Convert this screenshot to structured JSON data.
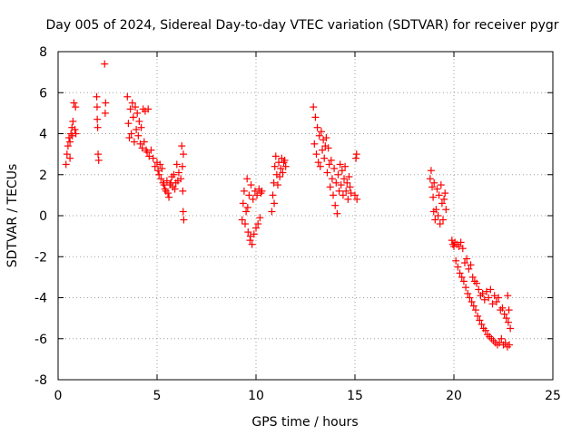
{
  "chart_data": {
    "type": "scatter",
    "title": "Day 005 of 2024, Sidereal Day-to-day VTEC variation (SDTVAR) for receiver pygr",
    "xlabel": "GPS time / hours",
    "ylabel": "SDTVAR / TECUs",
    "xlim": [
      0,
      25
    ],
    "ylim": [
      -8,
      8
    ],
    "xticks": [
      0,
      5,
      10,
      15,
      20,
      25
    ],
    "yticks": [
      -8,
      -6,
      -4,
      -2,
      0,
      2,
      4,
      6,
      8
    ],
    "grid": true,
    "marker": "+",
    "color": "#ff0000",
    "series": [
      {
        "name": "SDTVAR",
        "points": [
          [
            0.4,
            2.5
          ],
          [
            0.45,
            3.0
          ],
          [
            0.5,
            3.4
          ],
          [
            0.55,
            3.8
          ],
          [
            0.6,
            3.6
          ],
          [
            0.65,
            4.0
          ],
          [
            0.7,
            4.3
          ],
          [
            0.75,
            4.6
          ],
          [
            0.8,
            5.5
          ],
          [
            0.85,
            4.2
          ],
          [
            0.9,
            4.0
          ],
          [
            0.88,
            5.3
          ],
          [
            0.6,
            2.8
          ],
          [
            0.72,
            3.9
          ],
          [
            1.95,
            5.8
          ],
          [
            1.98,
            4.7
          ],
          [
            2.0,
            4.3
          ],
          [
            2.02,
            3.0
          ],
          [
            2.05,
            2.7
          ],
          [
            1.97,
            5.3
          ],
          [
            2.35,
            7.4
          ],
          [
            2.4,
            5.5
          ],
          [
            2.38,
            5.0
          ],
          [
            3.5,
            5.8
          ],
          [
            3.55,
            4.5
          ],
          [
            3.6,
            3.8
          ],
          [
            3.65,
            5.2
          ],
          [
            3.7,
            4.0
          ],
          [
            3.75,
            5.5
          ],
          [
            3.8,
            4.8
          ],
          [
            3.85,
            3.6
          ],
          [
            3.9,
            5.3
          ],
          [
            3.95,
            4.2
          ],
          [
            4.0,
            5.0
          ],
          [
            4.05,
            3.9
          ],
          [
            4.1,
            4.6
          ],
          [
            4.15,
            3.5
          ],
          [
            4.2,
            4.3
          ],
          [
            4.25,
            3.3
          ],
          [
            4.3,
            5.2
          ],
          [
            4.35,
            3.6
          ],
          [
            4.4,
            5.1
          ],
          [
            4.45,
            3.2
          ],
          [
            4.5,
            3.1
          ],
          [
            4.55,
            5.2
          ],
          [
            4.6,
            2.9
          ],
          [
            4.7,
            3.2
          ],
          [
            4.8,
            2.8
          ],
          [
            4.9,
            2.4
          ],
          [
            5.0,
            2.6
          ],
          [
            5.05,
            2.2
          ],
          [
            5.1,
            2.0
          ],
          [
            5.15,
            2.5
          ],
          [
            5.2,
            1.8
          ],
          [
            5.25,
            2.3
          ],
          [
            5.3,
            1.6
          ],
          [
            5.35,
            1.5
          ],
          [
            5.4,
            1.3
          ],
          [
            5.45,
            1.2
          ],
          [
            5.5,
            1.7
          ],
          [
            5.55,
            1.1
          ],
          [
            5.6,
            0.9
          ],
          [
            5.65,
            1.5
          ],
          [
            5.7,
            1.6
          ],
          [
            5.75,
            1.9
          ],
          [
            5.8,
            1.4
          ],
          [
            5.85,
            2.0
          ],
          [
            5.9,
            1.3
          ],
          [
            5.95,
            1.6
          ],
          [
            6.0,
            2.5
          ],
          [
            6.05,
            1.7
          ],
          [
            6.1,
            2.1
          ],
          [
            6.2,
            1.8
          ],
          [
            6.25,
            3.4
          ],
          [
            6.28,
            2.4
          ],
          [
            6.3,
            1.2
          ],
          [
            6.32,
            0.2
          ],
          [
            6.35,
            -0.2
          ],
          [
            6.33,
            3.0
          ],
          [
            9.3,
            -0.2
          ],
          [
            9.35,
            0.6
          ],
          [
            9.4,
            1.2
          ],
          [
            9.45,
            -0.4
          ],
          [
            9.5,
            0.2
          ],
          [
            9.55,
            1.8
          ],
          [
            9.6,
            -0.8
          ],
          [
            9.65,
            1.0
          ],
          [
            9.7,
            -1.2
          ],
          [
            9.75,
            1.5
          ],
          [
            9.8,
            -1.4
          ],
          [
            9.85,
            0.8
          ],
          [
            9.9,
            -0.9
          ],
          [
            9.95,
            1.2
          ],
          [
            10.0,
            -0.6
          ],
          [
            10.05,
            1.0
          ],
          [
            10.1,
            -0.4
          ],
          [
            10.15,
            1.3
          ],
          [
            10.2,
            -0.1
          ],
          [
            10.25,
            1.1
          ],
          [
            10.3,
            1.2
          ],
          [
            9.72,
            -1.0
          ],
          [
            9.58,
            0.4
          ],
          [
            10.8,
            0.2
          ],
          [
            10.85,
            1.0
          ],
          [
            10.9,
            1.6
          ],
          [
            10.95,
            2.4
          ],
          [
            11.0,
            2.9
          ],
          [
            11.05,
            2.0
          ],
          [
            11.1,
            1.5
          ],
          [
            11.15,
            2.6
          ],
          [
            11.2,
            1.9
          ],
          [
            11.25,
            2.3
          ],
          [
            11.3,
            2.8
          ],
          [
            11.35,
            2.1
          ],
          [
            11.4,
            2.6
          ],
          [
            11.45,
            2.7
          ],
          [
            11.5,
            2.4
          ],
          [
            10.92,
            0.6
          ],
          [
            12.9,
            5.3
          ],
          [
            12.95,
            3.5
          ],
          [
            13.0,
            4.8
          ],
          [
            13.05,
            3.0
          ],
          [
            13.1,
            4.3
          ],
          [
            13.15,
            2.6
          ],
          [
            13.2,
            3.9
          ],
          [
            13.25,
            2.4
          ],
          [
            13.3,
            4.1
          ],
          [
            13.35,
            3.2
          ],
          [
            13.4,
            3.7
          ],
          [
            13.45,
            2.8
          ],
          [
            13.5,
            3.4
          ],
          [
            13.55,
            3.8
          ],
          [
            13.6,
            2.1
          ],
          [
            13.65,
            3.3
          ],
          [
            13.7,
            2.5
          ],
          [
            13.75,
            1.4
          ],
          [
            13.8,
            2.7
          ],
          [
            13.85,
            1.8
          ],
          [
            13.9,
            1.0
          ],
          [
            13.95,
            2.3
          ],
          [
            14.0,
            0.5
          ],
          [
            14.05,
            1.6
          ],
          [
            14.1,
            0.1
          ],
          [
            14.15,
            2.0
          ],
          [
            14.2,
            1.2
          ],
          [
            14.25,
            2.5
          ],
          [
            14.3,
            1.5
          ],
          [
            14.35,
            2.2
          ],
          [
            14.4,
            1.0
          ],
          [
            14.45,
            1.8
          ],
          [
            14.5,
            2.4
          ],
          [
            14.55,
            1.2
          ],
          [
            14.6,
            1.6
          ],
          [
            14.65,
            0.8
          ],
          [
            14.7,
            1.9
          ],
          [
            14.75,
            1.4
          ],
          [
            14.8,
            1.1
          ],
          [
            15.0,
            1.0
          ],
          [
            15.05,
            2.8
          ],
          [
            15.1,
            0.8
          ],
          [
            15.08,
            3.0
          ],
          [
            18.8,
            1.8
          ],
          [
            18.85,
            2.2
          ],
          [
            18.9,
            1.4
          ],
          [
            18.95,
            0.9
          ],
          [
            19.0,
            1.6
          ],
          [
            19.05,
            -0.2
          ],
          [
            19.1,
            0.3
          ],
          [
            19.15,
            1.3
          ],
          [
            19.2,
            0.0
          ],
          [
            19.25,
            1.0
          ],
          [
            19.3,
            -0.4
          ],
          [
            19.35,
            1.5
          ],
          [
            19.4,
            0.6
          ],
          [
            19.45,
            -0.2
          ],
          [
            19.5,
            0.8
          ],
          [
            19.55,
            1.1
          ],
          [
            19.6,
            0.3
          ],
          [
            18.98,
            0.2
          ],
          [
            19.9,
            -1.2
          ],
          [
            19.95,
            -1.4
          ],
          [
            20.0,
            -1.5
          ],
          [
            20.05,
            -1.3
          ],
          [
            20.1,
            -2.2
          ],
          [
            20.15,
            -1.4
          ],
          [
            20.2,
            -2.5
          ],
          [
            20.25,
            -1.5
          ],
          [
            20.3,
            -2.8
          ],
          [
            20.35,
            -1.3
          ],
          [
            20.4,
            -3.0
          ],
          [
            20.45,
            -1.6
          ],
          [
            20.5,
            -3.2
          ],
          [
            20.55,
            -2.3
          ],
          [
            20.6,
            -3.5
          ],
          [
            20.65,
            -2.1
          ],
          [
            20.7,
            -3.8
          ],
          [
            20.75,
            -2.6
          ],
          [
            20.8,
            -4.0
          ],
          [
            20.85,
            -2.4
          ],
          [
            20.9,
            -4.2
          ],
          [
            20.95,
            -3.0
          ],
          [
            21.0,
            -4.4
          ],
          [
            21.05,
            -3.2
          ],
          [
            21.1,
            -4.6
          ],
          [
            21.15,
            -3.3
          ],
          [
            21.2,
            -4.9
          ],
          [
            21.25,
            -3.6
          ],
          [
            21.3,
            -5.1
          ],
          [
            21.35,
            -3.9
          ],
          [
            21.4,
            -5.3
          ],
          [
            21.45,
            -3.8
          ],
          [
            21.5,
            -5.5
          ],
          [
            21.55,
            -4.1
          ],
          [
            21.6,
            -5.6
          ],
          [
            21.65,
            -3.7
          ],
          [
            21.7,
            -5.8
          ],
          [
            21.75,
            -4.0
          ],
          [
            21.8,
            -5.9
          ],
          [
            21.85,
            -3.6
          ],
          [
            21.9,
            -6.0
          ],
          [
            21.95,
            -4.3
          ],
          [
            22.0,
            -6.1
          ],
          [
            22.05,
            -3.9
          ],
          [
            22.1,
            -6.2
          ],
          [
            22.15,
            -4.2
          ],
          [
            22.2,
            -6.3
          ],
          [
            22.25,
            -4.0
          ],
          [
            22.3,
            -6.2
          ],
          [
            22.35,
            -4.6
          ],
          [
            22.4,
            -6.0
          ],
          [
            22.45,
            -4.5
          ],
          [
            22.5,
            -6.3
          ],
          [
            22.55,
            -4.8
          ],
          [
            22.6,
            -6.2
          ],
          [
            22.65,
            -5.0
          ],
          [
            22.7,
            -6.4
          ],
          [
            22.75,
            -5.2
          ],
          [
            22.8,
            -6.3
          ],
          [
            22.85,
            -5.5
          ],
          [
            22.78,
            -4.6
          ],
          [
            22.72,
            -3.9
          ]
        ]
      }
    ]
  }
}
